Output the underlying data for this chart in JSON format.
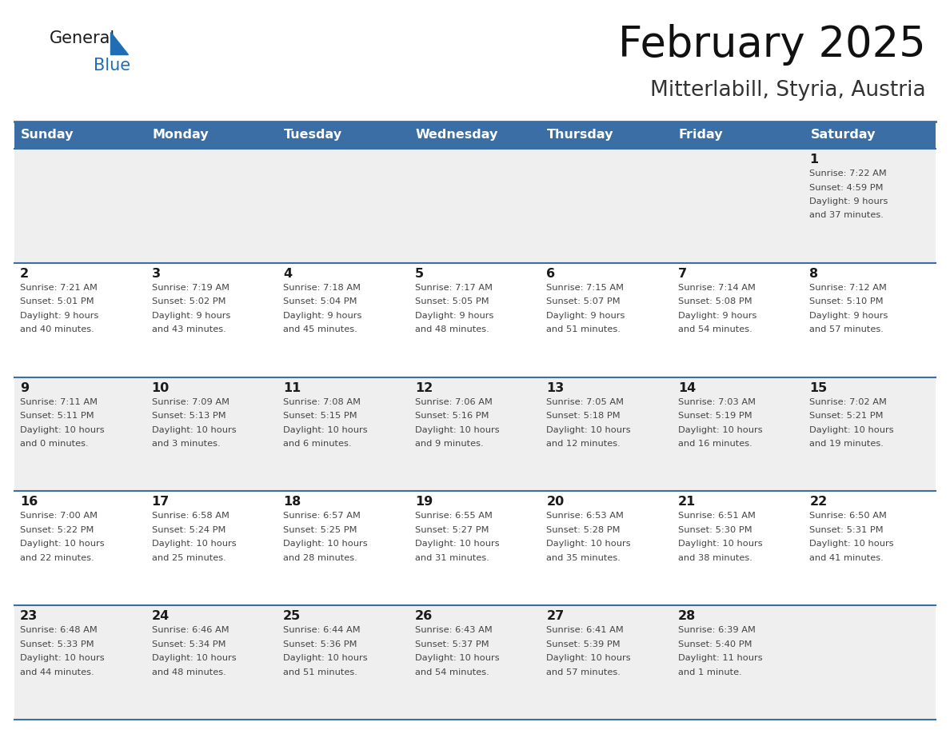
{
  "title": "February 2025",
  "subtitle": "Mitterlabill, Styria, Austria",
  "header_color": "#3A6EA5",
  "header_text_color": "#FFFFFF",
  "cell_bg_gray": "#EFEFEF",
  "cell_bg_white": "#FFFFFF",
  "border_color": "#3A6EA5",
  "text_dark": "#1a1a1a",
  "text_info": "#444444",
  "logo_general_color": "#1a1a1a",
  "logo_blue_color": "#1F6EB5",
  "logo_triangle_color": "#1F6EB5",
  "days_of_week": [
    "Sunday",
    "Monday",
    "Tuesday",
    "Wednesday",
    "Thursday",
    "Friday",
    "Saturday"
  ],
  "weeks": [
    [
      {
        "day": null,
        "info": null
      },
      {
        "day": null,
        "info": null
      },
      {
        "day": null,
        "info": null
      },
      {
        "day": null,
        "info": null
      },
      {
        "day": null,
        "info": null
      },
      {
        "day": null,
        "info": null
      },
      {
        "day": 1,
        "info": "Sunrise: 7:22 AM\nSunset: 4:59 PM\nDaylight: 9 hours\nand 37 minutes."
      }
    ],
    [
      {
        "day": 2,
        "info": "Sunrise: 7:21 AM\nSunset: 5:01 PM\nDaylight: 9 hours\nand 40 minutes."
      },
      {
        "day": 3,
        "info": "Sunrise: 7:19 AM\nSunset: 5:02 PM\nDaylight: 9 hours\nand 43 minutes."
      },
      {
        "day": 4,
        "info": "Sunrise: 7:18 AM\nSunset: 5:04 PM\nDaylight: 9 hours\nand 45 minutes."
      },
      {
        "day": 5,
        "info": "Sunrise: 7:17 AM\nSunset: 5:05 PM\nDaylight: 9 hours\nand 48 minutes."
      },
      {
        "day": 6,
        "info": "Sunrise: 7:15 AM\nSunset: 5:07 PM\nDaylight: 9 hours\nand 51 minutes."
      },
      {
        "day": 7,
        "info": "Sunrise: 7:14 AM\nSunset: 5:08 PM\nDaylight: 9 hours\nand 54 minutes."
      },
      {
        "day": 8,
        "info": "Sunrise: 7:12 AM\nSunset: 5:10 PM\nDaylight: 9 hours\nand 57 minutes."
      }
    ],
    [
      {
        "day": 9,
        "info": "Sunrise: 7:11 AM\nSunset: 5:11 PM\nDaylight: 10 hours\nand 0 minutes."
      },
      {
        "day": 10,
        "info": "Sunrise: 7:09 AM\nSunset: 5:13 PM\nDaylight: 10 hours\nand 3 minutes."
      },
      {
        "day": 11,
        "info": "Sunrise: 7:08 AM\nSunset: 5:15 PM\nDaylight: 10 hours\nand 6 minutes."
      },
      {
        "day": 12,
        "info": "Sunrise: 7:06 AM\nSunset: 5:16 PM\nDaylight: 10 hours\nand 9 minutes."
      },
      {
        "day": 13,
        "info": "Sunrise: 7:05 AM\nSunset: 5:18 PM\nDaylight: 10 hours\nand 12 minutes."
      },
      {
        "day": 14,
        "info": "Sunrise: 7:03 AM\nSunset: 5:19 PM\nDaylight: 10 hours\nand 16 minutes."
      },
      {
        "day": 15,
        "info": "Sunrise: 7:02 AM\nSunset: 5:21 PM\nDaylight: 10 hours\nand 19 minutes."
      }
    ],
    [
      {
        "day": 16,
        "info": "Sunrise: 7:00 AM\nSunset: 5:22 PM\nDaylight: 10 hours\nand 22 minutes."
      },
      {
        "day": 17,
        "info": "Sunrise: 6:58 AM\nSunset: 5:24 PM\nDaylight: 10 hours\nand 25 minutes."
      },
      {
        "day": 18,
        "info": "Sunrise: 6:57 AM\nSunset: 5:25 PM\nDaylight: 10 hours\nand 28 minutes."
      },
      {
        "day": 19,
        "info": "Sunrise: 6:55 AM\nSunset: 5:27 PM\nDaylight: 10 hours\nand 31 minutes."
      },
      {
        "day": 20,
        "info": "Sunrise: 6:53 AM\nSunset: 5:28 PM\nDaylight: 10 hours\nand 35 minutes."
      },
      {
        "day": 21,
        "info": "Sunrise: 6:51 AM\nSunset: 5:30 PM\nDaylight: 10 hours\nand 38 minutes."
      },
      {
        "day": 22,
        "info": "Sunrise: 6:50 AM\nSunset: 5:31 PM\nDaylight: 10 hours\nand 41 minutes."
      }
    ],
    [
      {
        "day": 23,
        "info": "Sunrise: 6:48 AM\nSunset: 5:33 PM\nDaylight: 10 hours\nand 44 minutes."
      },
      {
        "day": 24,
        "info": "Sunrise: 6:46 AM\nSunset: 5:34 PM\nDaylight: 10 hours\nand 48 minutes."
      },
      {
        "day": 25,
        "info": "Sunrise: 6:44 AM\nSunset: 5:36 PM\nDaylight: 10 hours\nand 51 minutes."
      },
      {
        "day": 26,
        "info": "Sunrise: 6:43 AM\nSunset: 5:37 PM\nDaylight: 10 hours\nand 54 minutes."
      },
      {
        "day": 27,
        "info": "Sunrise: 6:41 AM\nSunset: 5:39 PM\nDaylight: 10 hours\nand 57 minutes."
      },
      {
        "day": 28,
        "info": "Sunrise: 6:39 AM\nSunset: 5:40 PM\nDaylight: 11 hours\nand 1 minute."
      },
      {
        "day": null,
        "info": null
      }
    ]
  ],
  "num_weeks": 5,
  "num_cols": 7,
  "fig_width": 11.88,
  "fig_height": 9.18,
  "dpi": 100
}
